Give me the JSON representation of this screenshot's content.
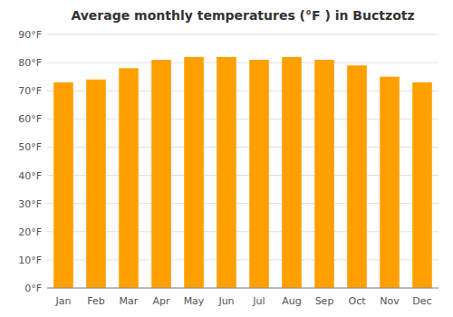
{
  "chart_data": {
    "type": "bar",
    "title": "Average monthly temperatures (°F ) in Buctzotz",
    "categories": [
      "Jan",
      "Feb",
      "Mar",
      "Apr",
      "May",
      "Jun",
      "Jul",
      "Aug",
      "Sep",
      "Oct",
      "Nov",
      "Dec"
    ],
    "values": [
      73,
      74,
      78,
      81,
      82,
      82,
      81,
      82,
      81,
      79,
      75,
      73
    ],
    "color": "#FFA000",
    "ylim": [
      0,
      90
    ],
    "yticks": [
      {
        "value": 0,
        "label": "0°F"
      },
      {
        "value": 10,
        "label": "10°F"
      },
      {
        "value": 20,
        "label": "20°F"
      },
      {
        "value": 30,
        "label": "30°F"
      },
      {
        "value": 40,
        "label": "40°F"
      },
      {
        "value": 50,
        "label": "50°F"
      },
      {
        "value": 60,
        "label": "60°F"
      },
      {
        "value": 70,
        "label": "70°F"
      },
      {
        "value": 80,
        "label": "80°F"
      },
      {
        "value": 90,
        "label": "90°F"
      }
    ],
    "grid": true
  }
}
